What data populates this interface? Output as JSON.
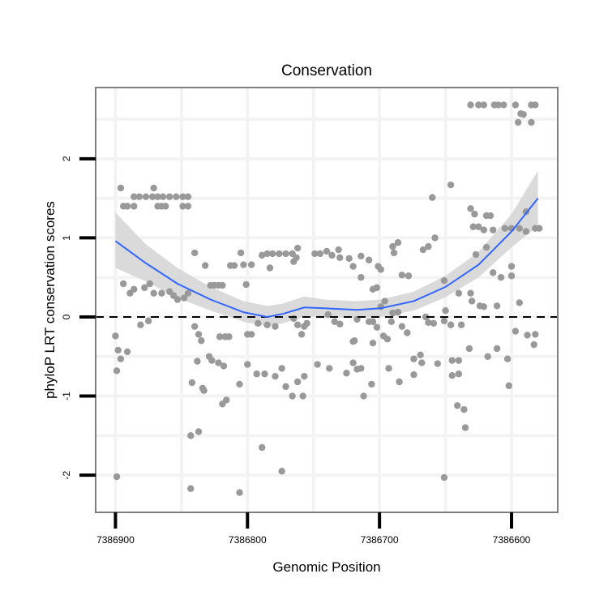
{
  "chart_data": {
    "type": "scatter",
    "title": "Conservation",
    "xlabel": "Genomic Position",
    "ylabel": "phyloP LRT conservation scores",
    "x_reversed": true,
    "xlim": [
      7386915,
      7386565
    ],
    "ylim": [
      -2.47,
      2.9
    ],
    "x_ticks": [
      7386900,
      7386800,
      7386700,
      7386600
    ],
    "x_tick_labels": [
      "7386900",
      "7386800",
      "7386700",
      "7386600"
    ],
    "y_ticks": [
      -2,
      -1,
      0,
      1,
      2
    ],
    "y_tick_labels": [
      "-2",
      "-1",
      "0",
      "1",
      "2"
    ],
    "x_minor_grid": [
      7386850,
      7386750,
      7386650
    ],
    "y_minor_grid": [
      -1.5,
      -0.5,
      0.5,
      1.5,
      2.5
    ],
    "reference_line": {
      "y": 0,
      "style": "dashed"
    },
    "colors": {
      "points": "#999999",
      "smooth": "#3366FF",
      "ci": "#d6d6d6",
      "panel_border": "#7f7f7f"
    },
    "points": [
      [
        7386896,
        1.63
      ],
      [
        7386871,
        1.63
      ],
      [
        7386886,
        1.52
      ],
      [
        7386882,
        1.52
      ],
      [
        7386877,
        1.52
      ],
      [
        7386872,
        1.52
      ],
      [
        7386868,
        1.52
      ],
      [
        7386864,
        1.52
      ],
      [
        7386859,
        1.52
      ],
      [
        7386854,
        1.52
      ],
      [
        7386849,
        1.52
      ],
      [
        7386845,
        1.52
      ],
      [
        7386894,
        1.4
      ],
      [
        7386891,
        1.4
      ],
      [
        7386886,
        1.4
      ],
      [
        7386868,
        1.4
      ],
      [
        7386865,
        1.4
      ],
      [
        7386862,
        1.4
      ],
      [
        7386849,
        1.4
      ],
      [
        7386845,
        1.4
      ],
      [
        7386894,
        0.42
      ],
      [
        7386889,
        0.3
      ],
      [
        7386886,
        0.35
      ],
      [
        7386878,
        0.37
      ],
      [
        7386874,
        0.42
      ],
      [
        7386871,
        0.3
      ],
      [
        7386865,
        0.3
      ],
      [
        7386859,
        0.32
      ],
      [
        7386856,
        0.27
      ],
      [
        7386853,
        0.22
      ],
      [
        7386848,
        0.24
      ],
      [
        7386845,
        0.3
      ],
      [
        7386881,
        -0.1
      ],
      [
        7386875,
        -0.05
      ],
      [
        7386900,
        -0.24
      ],
      [
        7386898,
        -0.42
      ],
      [
        7386896,
        -0.53
      ],
      [
        7386899,
        -0.68
      ],
      [
        7386891,
        -0.44
      ],
      [
        7386899,
        -2.02
      ],
      [
        7386840,
        0.81
      ],
      [
        7386832,
        0.65
      ],
      [
        7386840,
        -0.12
      ],
      [
        7386837,
        -0.22
      ],
      [
        7386835,
        -0.3
      ],
      [
        7386838,
        -0.56
      ],
      [
        7386829,
        -0.5
      ],
      [
        7386827,
        -0.55
      ],
      [
        7386822,
        -0.58
      ],
      [
        7386818,
        -0.62
      ],
      [
        7386842,
        -0.83
      ],
      [
        7386834,
        -0.9
      ],
      [
        7386833,
        -0.93
      ],
      [
        7386819,
        -1.1
      ],
      [
        7386816,
        -1.05
      ],
      [
        7386843,
        -1.5
      ],
      [
        7386837,
        -1.45
      ],
      [
        7386843,
        -2.17
      ],
      [
        7386806,
        -2.22
      ],
      [
        7386828,
        0.4
      ],
      [
        7386825,
        0.4
      ],
      [
        7386822,
        0.4
      ],
      [
        7386819,
        0.4
      ],
      [
        7386813,
        0.65
      ],
      [
        7386810,
        0.65
      ],
      [
        7386803,
        0.66
      ],
      [
        7386797,
        0.66
      ],
      [
        7386805,
        0.81
      ],
      [
        7386801,
        0.41
      ],
      [
        7386821,
        -0.25
      ],
      [
        7386817,
        -0.25
      ],
      [
        7386814,
        -0.25
      ],
      [
        7386800,
        -0.22
      ],
      [
        7386797,
        -0.22
      ],
      [
        7386800,
        -0.6
      ],
      [
        7386806,
        -0.85
      ],
      [
        7386793,
        -0.72
      ],
      [
        7386789,
        0.78
      ],
      [
        7386785,
        0.8
      ],
      [
        7386781,
        0.8
      ],
      [
        7386776,
        0.8
      ],
      [
        7386771,
        0.8
      ],
      [
        7386766,
        0.8
      ],
      [
        7386762,
        0.87
      ],
      [
        7386763,
        0.75
      ],
      [
        7386765,
        0.7
      ],
      [
        7386783,
        0.62
      ],
      [
        7386792,
        -0.08
      ],
      [
        7386787,
        -0.72
      ],
      [
        7386779,
        -0.75
      ],
      [
        7386774,
        -0.65
      ],
      [
        7386771,
        -0.88
      ],
      [
        7386766,
        -1.0
      ],
      [
        7386758,
        -1.0
      ],
      [
        7386762,
        -0.82
      ],
      [
        7386757,
        -0.75
      ],
      [
        7386765,
        -0.02
      ],
      [
        7386762,
        -0.1
      ],
      [
        7386757,
        -0.12
      ],
      [
        7386759,
        -0.22
      ],
      [
        7386755,
        -0.08
      ],
      [
        7386789,
        -1.65
      ],
      [
        7386774,
        -1.95
      ],
      [
        7386785,
        -0.1
      ],
      [
        7386779,
        -0.12
      ],
      [
        7386749,
        0.8
      ],
      [
        7386745,
        0.8
      ],
      [
        7386740,
        0.83
      ],
      [
        7386736,
        0.78
      ],
      [
        7386730,
        0.75
      ],
      [
        7386731,
        0.85
      ],
      [
        7386723,
        0.74
      ],
      [
        7386720,
        0.64
      ],
      [
        7386714,
        0.77
      ],
      [
        7386708,
        0.72
      ],
      [
        7386699,
        0.6
      ],
      [
        7386701,
        0.64
      ],
      [
        7386690,
        0.89
      ],
      [
        7386686,
        0.94
      ],
      [
        7386689,
        0.81
      ],
      [
        7386683,
        0.53
      ],
      [
        7386678,
        0.52
      ],
      [
        7386667,
        0.85
      ],
      [
        7386663,
        0.89
      ],
      [
        7386658,
        1.0
      ],
      [
        7386660,
        1.51
      ],
      [
        7386646,
        1.67
      ],
      [
        7386705,
        0.35
      ],
      [
        7386702,
        0.37
      ],
      [
        7386650,
        0.08
      ],
      [
        7386714,
        0.5
      ],
      [
        7386699,
        0.13
      ],
      [
        7386739,
        0.03
      ],
      [
        7386734,
        -0.06
      ],
      [
        7386730,
        -0.09
      ],
      [
        7386720,
        -0.31
      ],
      [
        7386719,
        -0.3
      ],
      [
        7386717,
        -0.03
      ],
      [
        7386708,
        -0.06
      ],
      [
        7386705,
        -0.06
      ],
      [
        7386705,
        -0.33
      ],
      [
        7386702,
        -0.13
      ],
      [
        7386697,
        -0.24
      ],
      [
        7386694,
        -0.28
      ],
      [
        7386691,
        -0.06
      ],
      [
        7386686,
        0.06
      ],
      [
        7386690,
        0.05
      ],
      [
        7386683,
        -0.12
      ],
      [
        7386679,
        -0.2
      ],
      [
        7386674,
        -0.53
      ],
      [
        7386669,
        -0.48
      ],
      [
        7386665,
        0.0
      ],
      [
        7386663,
        -0.07
      ],
      [
        7386659,
        -0.08
      ],
      [
        7386651,
        -0.05
      ],
      [
        7386646,
        -0.1
      ],
      [
        7386747,
        -0.6
      ],
      [
        7386738,
        -0.65
      ],
      [
        7386725,
        -0.71
      ],
      [
        7386720,
        -0.58
      ],
      [
        7386714,
        -0.65
      ],
      [
        7386706,
        -0.85
      ],
      [
        7386712,
        -1.0
      ],
      [
        7386717,
        -0.66
      ],
      [
        7386693,
        -0.65
      ],
      [
        7386685,
        -0.82
      ],
      [
        7386674,
        -0.73
      ],
      [
        7386668,
        -0.58
      ],
      [
        7386656,
        -0.59
      ],
      [
        7386645,
        -0.55
      ],
      [
        7386640,
        -0.55
      ],
      [
        7386645,
        -0.74
      ],
      [
        7386640,
        -0.72
      ],
      [
        7386641,
        -1.12
      ],
      [
        7386636,
        -1.17
      ],
      [
        7386635,
        -1.4
      ],
      [
        7386651,
        -2.03
      ],
      [
        7386632,
        -0.4
      ],
      [
        7386618,
        -0.5
      ],
      [
        7386611,
        -0.4
      ],
      [
        7386603,
        -0.53
      ],
      [
        7386602,
        -0.87
      ],
      [
        7386597,
        -0.18
      ],
      [
        7386588,
        -0.23
      ],
      [
        7386583,
        -0.35
      ],
      [
        7386582,
        -0.22
      ],
      [
        7386611,
        0.14
      ],
      [
        7386594,
        0.18
      ],
      [
        7386638,
        -0.1
      ],
      [
        7386631,
        1.37
      ],
      [
        7386628,
        1.3
      ],
      [
        7386619,
        1.28
      ],
      [
        7386616,
        1.28
      ],
      [
        7386629,
        1.14
      ],
      [
        7386625,
        1.14
      ],
      [
        7386621,
        1.1
      ],
      [
        7386614,
        1.1
      ],
      [
        7386605,
        1.12
      ],
      [
        7386600,
        1.12
      ],
      [
        7386594,
        1.12
      ],
      [
        7386589,
        1.08
      ],
      [
        7386582,
        1.12
      ],
      [
        7386579,
        1.12
      ],
      [
        7386589,
        1.33
      ],
      [
        7386619,
        0.88
      ],
      [
        7386627,
        0.79
      ],
      [
        7386614,
        0.56
      ],
      [
        7386608,
        0.5
      ],
      [
        7386600,
        0.64
      ],
      [
        7386600,
        0.52
      ],
      [
        7386630,
        0.2
      ],
      [
        7386624,
        0.14
      ],
      [
        7386621,
        0.13
      ],
      [
        7386631,
        0.3
      ],
      [
        7386696,
        0.2
      ],
      [
        7386651,
        0.46
      ],
      [
        7386640,
        0.3
      ],
      [
        7386631,
        2.68
      ],
      [
        7386625,
        2.68
      ],
      [
        7386621,
        2.68
      ],
      [
        7386613,
        2.68
      ],
      [
        7386610,
        2.68
      ],
      [
        7386606,
        2.68
      ],
      [
        7386597,
        2.68
      ],
      [
        7386585,
        2.68
      ],
      [
        7386582,
        2.68
      ],
      [
        7386593,
        2.57
      ],
      [
        7386591,
        2.56
      ],
      [
        7386595,
        2.46
      ],
      [
        7386585,
        2.46
      ]
    ],
    "smooth": {
      "x": [
        7386900,
        7386877,
        7386853,
        7386828,
        7386803,
        7386785,
        7386773,
        7386757,
        7386742,
        7386717,
        7386699,
        7386674,
        7386650,
        7386625,
        7386600,
        7386580
      ],
      "y": [
        0.96,
        0.68,
        0.42,
        0.22,
        0.06,
        0.0,
        0.04,
        0.12,
        0.11,
        0.09,
        0.11,
        0.2,
        0.38,
        0.66,
        1.08,
        1.5
      ],
      "upper": [
        1.32,
        0.92,
        0.62,
        0.38,
        0.2,
        0.14,
        0.17,
        0.26,
        0.22,
        0.2,
        0.22,
        0.32,
        0.52,
        0.82,
        1.3,
        1.85
      ],
      "lower": [
        0.62,
        0.45,
        0.24,
        0.08,
        -0.06,
        -0.12,
        -0.08,
        0.01,
        0.0,
        -0.01,
        0.0,
        0.08,
        0.25,
        0.5,
        0.88,
        1.15
      ]
    }
  }
}
